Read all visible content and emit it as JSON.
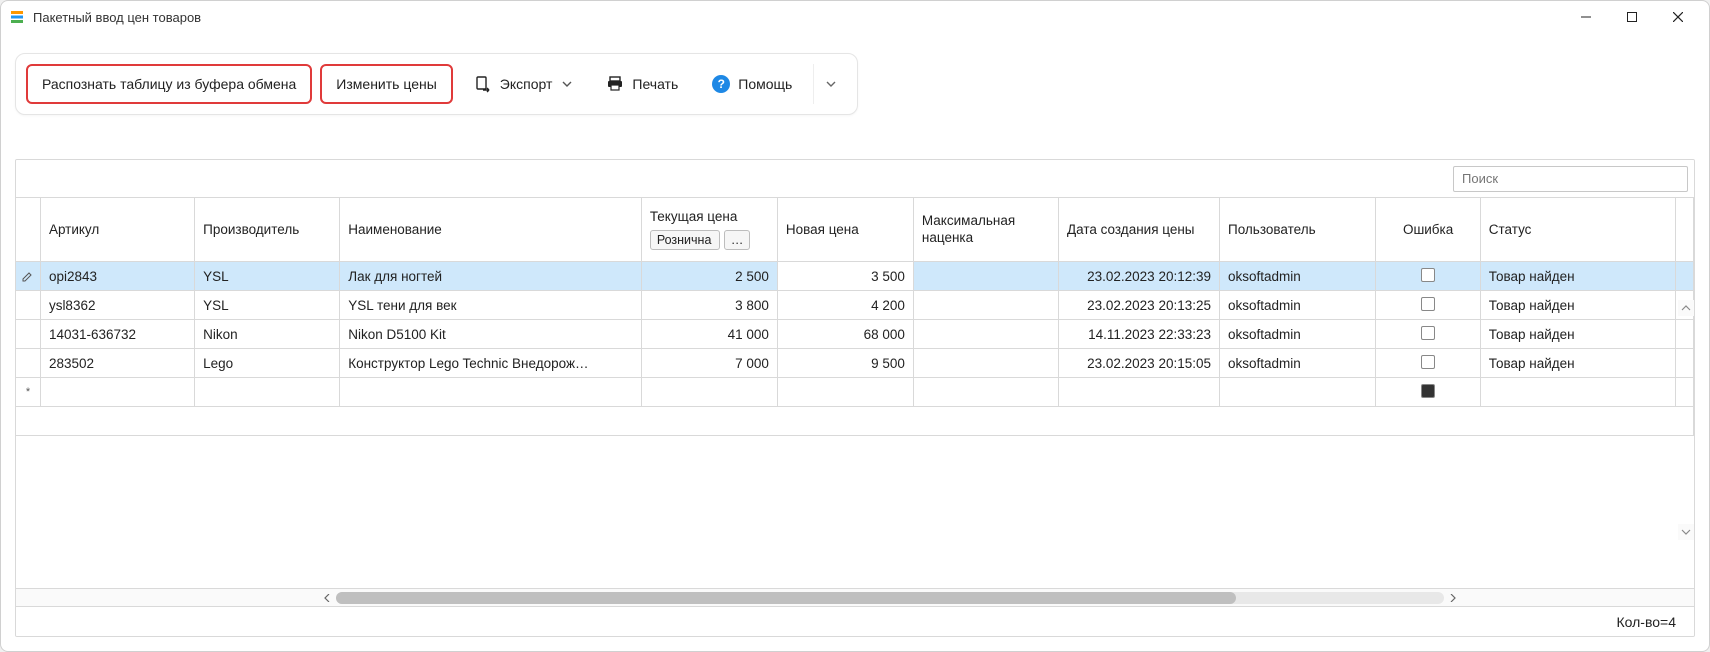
{
  "window": {
    "title": "Пакетный ввод цен товаров"
  },
  "toolbar": {
    "btn_recognize": "Распознать таблицу из буфера обмена",
    "btn_change_prices": "Изменить цены",
    "btn_export": "Экспорт",
    "btn_print": "Печать",
    "btn_help": "Помощь"
  },
  "search": {
    "placeholder": "Поиск"
  },
  "columns": {
    "article": "Артикул",
    "manufacturer": "Производитель",
    "name": "Наименование",
    "current_price": "Текущая цена",
    "current_price_preset": "Рознична",
    "new_price": "Новая цена",
    "max_markup_l1": "Максимальная",
    "max_markup_l2": "наценка",
    "date_created": "Дата создания цены",
    "user": "Пользователь",
    "error": "Ошибка",
    "status": "Статус"
  },
  "rows": [
    {
      "indicator": "edit",
      "article": "opi2843",
      "manufacturer": "YSL",
      "name": "Лак для ногтей",
      "current_price": "2 500",
      "new_price": "3 500",
      "max_markup": "",
      "date": "23.02.2023 20:12:39",
      "user": "oksoftadmin",
      "error": false,
      "status": "Товар найден",
      "selected": true,
      "editing_new_price": true
    },
    {
      "indicator": "",
      "article": "ysl8362",
      "manufacturer": "YSL",
      "name": "YSL тени для век",
      "current_price": "3 800",
      "new_price": "4 200",
      "max_markup": "",
      "date": "23.02.2023 20:13:25",
      "user": "oksoftadmin",
      "error": false,
      "status": "Товар найден"
    },
    {
      "indicator": "",
      "article": "14031-636732",
      "manufacturer": "Nikon",
      "name": "Nikon D5100 Kit",
      "current_price": "41 000",
      "new_price": "68 000",
      "max_markup": "",
      "date": "14.11.2023 22:33:23",
      "user": "oksoftadmin",
      "error": false,
      "status": "Товар найден"
    },
    {
      "indicator": "",
      "article": "283502",
      "manufacturer": "Lego",
      "name": "Конструктор Lego Technic Внедорож…",
      "current_price": "7 000",
      "new_price": "9 500",
      "max_markup": "",
      "date": "23.02.2023 20:15:05",
      "user": "oksoftadmin",
      "error": false,
      "status": "Товар найден"
    }
  ],
  "new_row_indicator": "*",
  "footer": {
    "count_label": "Кол-во=4"
  },
  "colors": {
    "highlight_red": "#e03a3a",
    "selection_blue": "#cfe8fb",
    "help_blue": "#1e88e5",
    "border": "#d9d9d9"
  }
}
